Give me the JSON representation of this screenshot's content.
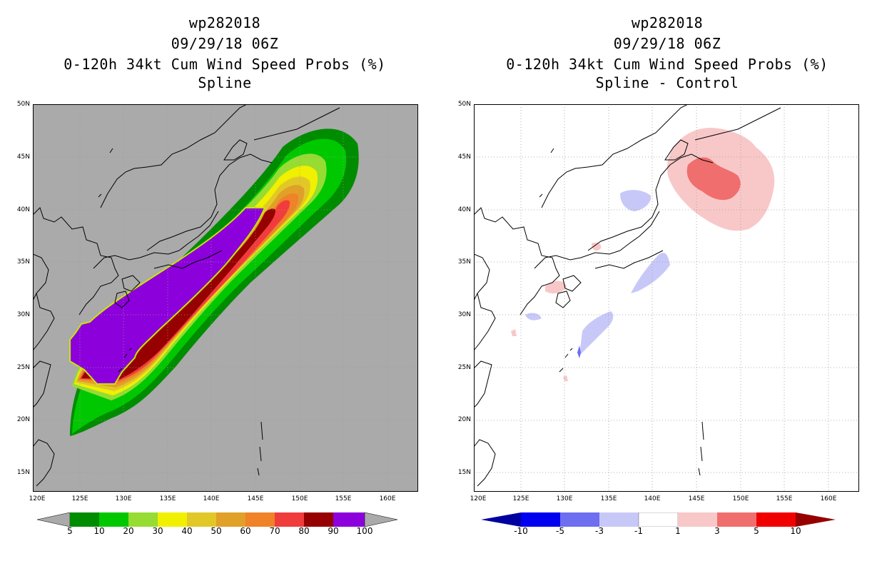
{
  "left": {
    "title": [
      "wp282018",
      "09/29/18 06Z",
      "0-120h 34kt Cum Wind Speed Probs (%)",
      "Spline"
    ],
    "colorbar": {
      "labels": [
        "5",
        "10",
        "20",
        "30",
        "40",
        "50",
        "60",
        "70",
        "80",
        "90",
        "100"
      ],
      "colors": [
        "#008c00",
        "#00c800",
        "#96dc32",
        "#f0f000",
        "#e1c828",
        "#e1a028",
        "#f08228",
        "#f03c3c",
        "#960000",
        "#8c00dc"
      ]
    }
  },
  "right": {
    "title": [
      "wp282018",
      "09/29/18 06Z",
      "0-120h 34kt Cum Wind Speed Probs (%)",
      "Spline - Control"
    ],
    "colorbar": {
      "labels": [
        "-10",
        "-5",
        "-3",
        "-1",
        "1",
        "3",
        "5",
        "10"
      ],
      "colors": [
        "#0000a0",
        "#0000f0",
        "#6e6ef0",
        "#c8c8f8",
        "#ffffff",
        "#f8c8c8",
        "#f06e6e",
        "#f00000",
        "#960000"
      ]
    }
  },
  "axes": {
    "lat_labels": [
      "50N",
      "45N",
      "40N",
      "35N",
      "30N",
      "25N",
      "20N",
      "15N"
    ],
    "lon_labels": [
      "120E",
      "125E",
      "130E",
      "135E",
      "140E",
      "145E",
      "150E",
      "155E",
      "160E"
    ]
  },
  "colors": {
    "map_bg_left": "#aaaaaa",
    "map_bg_right": "#ffffff",
    "grid": "#999999",
    "coast": "#000000"
  }
}
